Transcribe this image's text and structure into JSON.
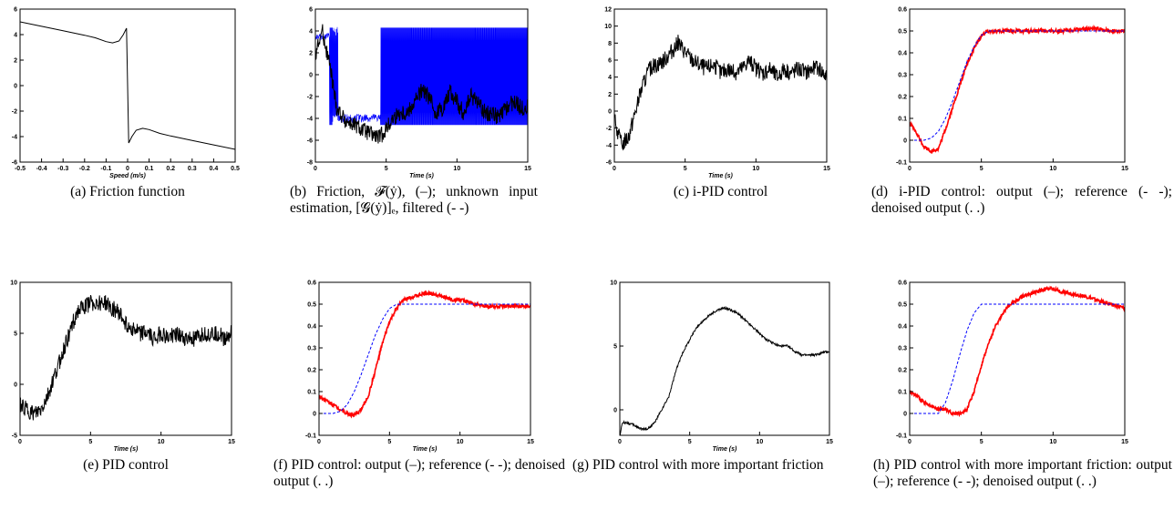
{
  "chart_data": [
    {
      "id": "a",
      "type": "line",
      "caption": "(a) Friction function",
      "xlabel": "Speed (m/s)",
      "xlim": [
        -0.5,
        0.5
      ],
      "ylim": [
        -6,
        6
      ],
      "xticks": [
        -0.5,
        -0.4,
        -0.3,
        -0.2,
        -0.1,
        0,
        0.1,
        0.2,
        0.3,
        0.4,
        0.5
      ],
      "yticks": [
        -6,
        -4,
        -2,
        0,
        2,
        4,
        6
      ],
      "series": [
        {
          "color": "#000000",
          "style": "solid",
          "x": [
            -0.5,
            -0.4,
            -0.3,
            -0.2,
            -0.15,
            -0.1,
            -0.07,
            -0.04,
            -0.02,
            -0.005,
            0.0,
            0.005,
            0.02,
            0.04,
            0.07,
            0.1,
            0.15,
            0.2,
            0.3,
            0.4,
            0.5
          ],
          "y": [
            5.0,
            4.65,
            4.3,
            3.95,
            3.75,
            3.45,
            3.35,
            3.5,
            4.0,
            4.5,
            0.0,
            -4.5,
            -4.0,
            -3.5,
            -3.35,
            -3.45,
            -3.75,
            -3.95,
            -4.3,
            -4.65,
            -5.0
          ]
        }
      ]
    },
    {
      "id": "b",
      "type": "line",
      "caption": "(b) Friction, 𝓕(ẏ), (–); unknown input estimation, [𝓖(ẏ)]ₑ, filtered (- -)",
      "xlabel": "Time (s)",
      "xlim": [
        0,
        15
      ],
      "ylim": [
        -8,
        6
      ],
      "xticks": [
        0,
        5,
        10,
        15
      ],
      "yticks": [
        -8,
        -6,
        -4,
        -2,
        0,
        2,
        4,
        6
      ],
      "series": [
        {
          "color": "#0000ff",
          "style": "switching",
          "x": [
            0,
            1,
            1.2,
            4.5,
            4.7,
            15
          ],
          "y": [
            3.5,
            3.5,
            -4.5,
            -4.5,
            4.5,
            -4.5
          ]
        },
        {
          "color": "#000000",
          "style": "noisy",
          "x": [
            0,
            0.5,
            1,
            1.5,
            2,
            2.5,
            3,
            3.5,
            4,
            4.5,
            5,
            5.5,
            6,
            6.5,
            7,
            7.5,
            8,
            8.5,
            9,
            9.5,
            10,
            10.5,
            11,
            11.5,
            12,
            12.5,
            13,
            13.5,
            14,
            14.5,
            15
          ],
          "y": [
            2,
            4,
            1,
            -3,
            -4,
            -4.5,
            -4.8,
            -5.2,
            -5.5,
            -5.8,
            -5,
            -4,
            -3.5,
            -3.5,
            -2.5,
            -1.5,
            -2,
            -3.5,
            -3,
            -1.5,
            -2.5,
            -3.5,
            -2,
            -2.5,
            -3.5,
            -3.5,
            -4,
            -3,
            -2.5,
            -3,
            -3
          ]
        }
      ]
    },
    {
      "id": "c",
      "type": "line",
      "caption": "(c) i-PID control",
      "xlabel": "Time (s)",
      "xlim": [
        0,
        15
      ],
      "ylim": [
        -6,
        12
      ],
      "xticks": [
        0,
        5,
        10,
        15
      ],
      "yticks": [
        -6,
        -4,
        -2,
        0,
        2,
        4,
        6,
        8,
        10,
        12
      ],
      "series": [
        {
          "color": "#000000",
          "style": "noisy",
          "x": [
            0,
            0.5,
            1,
            1.5,
            2,
            2.5,
            3,
            3.5,
            4,
            4.5,
            5,
            5.5,
            6,
            6.5,
            7,
            7.5,
            8,
            8.5,
            9,
            9.5,
            10,
            10.5,
            11,
            11.5,
            12,
            12.5,
            13,
            13.5,
            14,
            14.5,
            15
          ],
          "y": [
            -1,
            -4,
            -3,
            0,
            3,
            5,
            5.5,
            6,
            7,
            8,
            7,
            6,
            5.5,
            5,
            5.5,
            4.5,
            5,
            4.5,
            5,
            6,
            5,
            4.5,
            5,
            4,
            5,
            4.5,
            5,
            4.5,
            5,
            5,
            4
          ]
        }
      ]
    },
    {
      "id": "d",
      "type": "line",
      "caption": "(d) i-PID control: output (–); reference (- -); denoised output (. .)",
      "xlabel": "",
      "xlim": [
        0,
        15
      ],
      "ylim": [
        -0.1,
        0.6
      ],
      "xticks": [
        0,
        5,
        10,
        15
      ],
      "yticks": [
        -0.1,
        0.0,
        0.1,
        0.2,
        0.3,
        0.4,
        0.5,
        0.6
      ],
      "series": [
        {
          "color": "#ff0000",
          "style": "noisy",
          "x": [
            0,
            0.5,
            1,
            1.5,
            2,
            2.5,
            3,
            3.5,
            4,
            4.5,
            5,
            5.5,
            6,
            7,
            8,
            9,
            10,
            11,
            12,
            13,
            14,
            15
          ],
          "y": [
            0.08,
            0.03,
            -0.03,
            -0.05,
            -0.04,
            0.05,
            0.15,
            0.25,
            0.35,
            0.42,
            0.48,
            0.5,
            0.5,
            0.5,
            0.5,
            0.5,
            0.5,
            0.5,
            0.51,
            0.51,
            0.5,
            0.5
          ]
        },
        {
          "color": "#0000ff",
          "style": "dashed",
          "x": [
            0,
            1,
            1.5,
            2,
            2.5,
            3,
            3.5,
            4,
            4.5,
            5,
            5.5,
            6,
            15
          ],
          "y": [
            0,
            0,
            0.01,
            0.04,
            0.1,
            0.18,
            0.27,
            0.36,
            0.43,
            0.48,
            0.5,
            0.5,
            0.5
          ]
        }
      ]
    },
    {
      "id": "e",
      "type": "line",
      "caption": "(e) PID control",
      "xlabel": "Time (s)",
      "xlim": [
        0,
        15
      ],
      "ylim": [
        -5,
        10
      ],
      "xticks": [
        0,
        5,
        10,
        15
      ],
      "yticks": [
        -5,
        0,
        5,
        10
      ],
      "series": [
        {
          "color": "#000000",
          "style": "noisy",
          "x": [
            0,
            0.5,
            1,
            1.5,
            2,
            2.5,
            3,
            3.5,
            4,
            4.5,
            5,
            5.5,
            6,
            6.5,
            7,
            7.5,
            8,
            8.5,
            9,
            9.5,
            10,
            10.5,
            11,
            11.5,
            12,
            12.5,
            13,
            13.5,
            14,
            14.5,
            15
          ],
          "y": [
            -2,
            -2.5,
            -3,
            -2.5,
            -1,
            1,
            3,
            5,
            7,
            7.5,
            8,
            8,
            8,
            7.5,
            7,
            6,
            5.5,
            5,
            5,
            4.5,
            5,
            4.5,
            5,
            4.5,
            4.5,
            4.5,
            5,
            5,
            5,
            4.5,
            5
          ]
        }
      ]
    },
    {
      "id": "f",
      "type": "line",
      "caption": "(f) PID control: output (–); reference (- -); denoised output (. .)",
      "xlabel": "Time (s)",
      "xlim": [
        0,
        15
      ],
      "ylim": [
        -0.1,
        0.6
      ],
      "xticks": [
        0,
        5,
        10,
        15
      ],
      "yticks": [
        -0.1,
        0.0,
        0.1,
        0.2,
        0.3,
        0.4,
        0.5,
        0.6
      ],
      "series": [
        {
          "color": "#ff0000",
          "style": "noisy",
          "x": [
            0,
            0.5,
            1,
            1.5,
            2,
            2.5,
            3,
            3.5,
            4,
            4.5,
            5,
            5.5,
            6,
            6.5,
            7,
            7.5,
            8,
            8.5,
            9,
            9.5,
            10,
            11,
            12,
            13,
            14,
            15
          ],
          "y": [
            0.08,
            0.06,
            0.04,
            0.02,
            0.0,
            -0.01,
            0.02,
            0.08,
            0.2,
            0.32,
            0.42,
            0.48,
            0.52,
            0.53,
            0.54,
            0.55,
            0.55,
            0.54,
            0.53,
            0.52,
            0.52,
            0.5,
            0.49,
            0.49,
            0.49,
            0.49
          ]
        },
        {
          "color": "#0000ff",
          "style": "dashed",
          "x": [
            0,
            1,
            1.5,
            2,
            2.5,
            3,
            3.5,
            4,
            4.5,
            5,
            5.5,
            6,
            6.5,
            15
          ],
          "y": [
            0,
            0,
            0.01,
            0.04,
            0.1,
            0.18,
            0.27,
            0.36,
            0.43,
            0.48,
            0.5,
            0.5,
            0.5,
            0.5
          ]
        }
      ]
    },
    {
      "id": "g",
      "type": "line",
      "caption": "(g) PID control with more important friction",
      "xlabel": "Time (s)",
      "xlim": [
        0,
        15
      ],
      "ylim": [
        -2,
        10
      ],
      "xticks": [
        0,
        5,
        10,
        15
      ],
      "yticks": [
        0,
        5,
        10
      ],
      "series": [
        {
          "color": "#000000",
          "style": "noisy",
          "x": [
            0,
            0.2,
            0.5,
            1,
            1.5,
            2,
            2.5,
            3,
            3.5,
            4,
            4.5,
            5,
            5.5,
            6,
            6.5,
            7,
            7.5,
            8,
            8.5,
            9,
            9.5,
            10,
            10.5,
            11,
            11.5,
            12,
            12.5,
            13,
            13.5,
            14,
            14.5,
            15
          ],
          "y": [
            -2,
            -1,
            -1,
            -1.2,
            -1.5,
            -1.5,
            -1,
            0,
            1,
            3,
            4.5,
            5.5,
            6.5,
            7,
            7.5,
            7.8,
            8,
            7.8,
            7.5,
            7,
            6.5,
            6,
            5.5,
            5.2,
            5,
            5,
            4.6,
            4.3,
            4.3,
            4.3,
            4.5,
            4.6
          ]
        }
      ]
    },
    {
      "id": "h",
      "type": "line",
      "caption": "(h) PID control with more important friction: output (–); reference (- -); denoised output (. .)",
      "xlabel": "",
      "xlim": [
        0,
        15
      ],
      "ylim": [
        -0.1,
        0.6
      ],
      "xticks": [
        0,
        5,
        10,
        15
      ],
      "yticks": [
        -0.1,
        0.0,
        0.1,
        0.2,
        0.3,
        0.4,
        0.5,
        0.6
      ],
      "series": [
        {
          "color": "#ff0000",
          "style": "noisy",
          "x": [
            0,
            0.5,
            1,
            1.5,
            2,
            2.5,
            3,
            3.5,
            4,
            4.5,
            5,
            5.5,
            6,
            6.5,
            7,
            7.5,
            8,
            8.5,
            9,
            9.5,
            10,
            10.5,
            11,
            12,
            13,
            14,
            15
          ],
          "y": [
            0.1,
            0.08,
            0.05,
            0.03,
            0.02,
            0.02,
            0.0,
            0.0,
            0.02,
            0.1,
            0.22,
            0.32,
            0.4,
            0.46,
            0.5,
            0.52,
            0.54,
            0.55,
            0.56,
            0.57,
            0.57,
            0.56,
            0.55,
            0.54,
            0.52,
            0.5,
            0.48
          ]
        },
        {
          "color": "#0000ff",
          "style": "dashed",
          "x": [
            0,
            2,
            2.5,
            3,
            3.5,
            4,
            4.5,
            5,
            5.5,
            6,
            15
          ],
          "y": [
            0,
            0,
            0.05,
            0.15,
            0.27,
            0.38,
            0.46,
            0.5,
            0.5,
            0.5,
            0.5
          ]
        }
      ]
    }
  ]
}
